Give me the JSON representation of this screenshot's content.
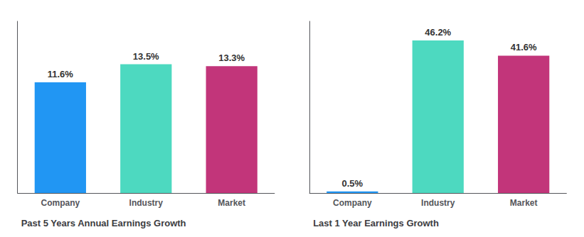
{
  "chart_data": [
    {
      "type": "bar",
      "title": "Past 5 Years Annual Earnings Growth",
      "categories": [
        "Company",
        "Industry",
        "Market"
      ],
      "values": [
        11.6,
        13.5,
        13.3
      ],
      "value_labels": [
        "11.6%",
        "13.5%",
        "13.3%"
      ],
      "colors": [
        "#2196f3",
        "#4dd9c0",
        "#c2357a"
      ],
      "ylim": [
        0,
        18
      ],
      "grid": false,
      "data_labels": true,
      "tick_labels": "x"
    },
    {
      "type": "bar",
      "title": "Last 1 Year Earnings Growth",
      "categories": [
        "Company",
        "Industry",
        "Market"
      ],
      "values": [
        0.5,
        46.2,
        41.6
      ],
      "value_labels": [
        "0.5%",
        "46.2%",
        "41.6%"
      ],
      "colors": [
        "#2196f3",
        "#4dd9c0",
        "#c2357a"
      ],
      "ylim": [
        0,
        52
      ],
      "grid": false,
      "data_labels": true,
      "tick_labels": "x"
    }
  ]
}
